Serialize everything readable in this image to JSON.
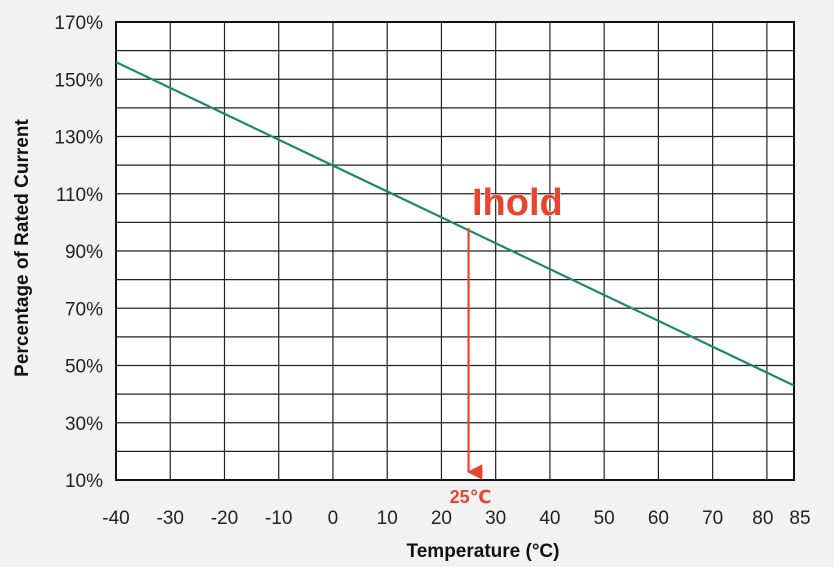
{
  "chart_data": {
    "type": "line",
    "xlabel": "Temperature (°C)",
    "ylabel": "Percentage of Rated Current",
    "x_ticks": [
      -40,
      -30,
      -20,
      -10,
      0,
      10,
      20,
      30,
      40,
      50,
      60,
      70,
      80,
      85
    ],
    "x_tick_labels": [
      "-40",
      "-30",
      "-20",
      "-10",
      "0",
      "10",
      "20",
      "30",
      "40",
      "50",
      "60",
      "70",
      "80",
      "85"
    ],
    "y_ticks": [
      10,
      30,
      50,
      70,
      90,
      110,
      130,
      150,
      170
    ],
    "y_tick_labels": [
      "10%",
      "30%",
      "50%",
      "70%",
      "90%",
      "110%",
      "130%",
      "150%",
      "170%"
    ],
    "xlim": [
      -40,
      85
    ],
    "ylim": [
      10,
      170
    ],
    "grid": true,
    "series": [
      {
        "x": [
          -40,
          85
        ],
        "y": [
          156,
          43
        ],
        "color": "#1a8a6e"
      }
    ],
    "annotations": [
      {
        "label": "Ihold",
        "color": "#e8452c"
      },
      {
        "label": "25℃",
        "x": 25,
        "y_from": 98,
        "y_to": 10,
        "color": "#e8452c"
      }
    ]
  }
}
